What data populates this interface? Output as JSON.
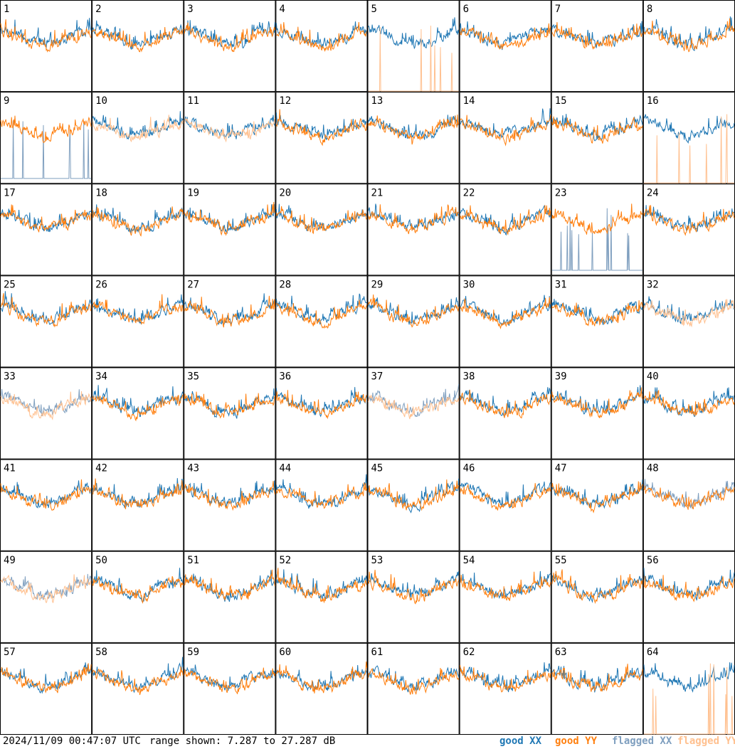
{
  "footer": {
    "timestamp": "2024/11/09 00:47:07 UTC",
    "range_text": "range shown: 7.287 to 27.287 dB"
  },
  "legend": {
    "good_xx": "good XX",
    "good_yy": "good YY",
    "flagged_xx": "flagged XX",
    "flagged_yy": "flagged YY"
  },
  "colors": {
    "good_xx": "#1f77b4",
    "good_yy": "#ff7f0e",
    "flagged_xx": "#7f9fbf",
    "flagged_yy": "#ffc08f"
  },
  "chart_data": {
    "type": "line",
    "grid_rows": 8,
    "grid_cols": 8,
    "ylim": [
      7.287,
      27.287
    ],
    "panels": [
      {
        "label": "1",
        "xx": "good",
        "yy": "good"
      },
      {
        "label": "2",
        "xx": "good",
        "yy": "good"
      },
      {
        "label": "3",
        "xx": "good",
        "yy": "good"
      },
      {
        "label": "4",
        "xx": "good",
        "yy": "good"
      },
      {
        "label": "5",
        "xx": "good",
        "yy": "flagged"
      },
      {
        "label": "6",
        "xx": "good",
        "yy": "good"
      },
      {
        "label": "7",
        "xx": "good",
        "yy": "good"
      },
      {
        "label": "8",
        "xx": "good",
        "yy": "good"
      },
      {
        "label": "9",
        "xx": "flagged",
        "yy": "good"
      },
      {
        "label": "10",
        "xx": "good",
        "yy": "flagged"
      },
      {
        "label": "11",
        "xx": "good",
        "yy": "flagged"
      },
      {
        "label": "12",
        "xx": "good",
        "yy": "good"
      },
      {
        "label": "13",
        "xx": "good",
        "yy": "good"
      },
      {
        "label": "14",
        "xx": "good",
        "yy": "good"
      },
      {
        "label": "15",
        "xx": "good",
        "yy": "good"
      },
      {
        "label": "16",
        "xx": "good",
        "yy": "flagged"
      },
      {
        "label": "17",
        "xx": "good",
        "yy": "good"
      },
      {
        "label": "18",
        "xx": "good",
        "yy": "good"
      },
      {
        "label": "19",
        "xx": "good",
        "yy": "good"
      },
      {
        "label": "20",
        "xx": "good",
        "yy": "good"
      },
      {
        "label": "21",
        "xx": "good",
        "yy": "good"
      },
      {
        "label": "22",
        "xx": "good",
        "yy": "good"
      },
      {
        "label": "23",
        "xx": "flagged",
        "yy": "good"
      },
      {
        "label": "24",
        "xx": "good",
        "yy": "good"
      },
      {
        "label": "25",
        "xx": "good",
        "yy": "good"
      },
      {
        "label": "26",
        "xx": "good",
        "yy": "good"
      },
      {
        "label": "27",
        "xx": "good",
        "yy": "good"
      },
      {
        "label": "28",
        "xx": "good",
        "yy": "good"
      },
      {
        "label": "29",
        "xx": "good",
        "yy": "good"
      },
      {
        "label": "30",
        "xx": "good",
        "yy": "good"
      },
      {
        "label": "31",
        "xx": "good",
        "yy": "good"
      },
      {
        "label": "32",
        "xx": "good",
        "yy": "flagged"
      },
      {
        "label": "33",
        "xx": "flagged",
        "yy": "flagged"
      },
      {
        "label": "34",
        "xx": "good",
        "yy": "good"
      },
      {
        "label": "35",
        "xx": "good",
        "yy": "good"
      },
      {
        "label": "36",
        "xx": "good",
        "yy": "good"
      },
      {
        "label": "37",
        "xx": "flagged",
        "yy": "flagged"
      },
      {
        "label": "38",
        "xx": "good",
        "yy": "good"
      },
      {
        "label": "39",
        "xx": "good",
        "yy": "good"
      },
      {
        "label": "40",
        "xx": "good",
        "yy": "good"
      },
      {
        "label": "41",
        "xx": "good",
        "yy": "good"
      },
      {
        "label": "42",
        "xx": "good",
        "yy": "good"
      },
      {
        "label": "43",
        "xx": "good",
        "yy": "good"
      },
      {
        "label": "44",
        "xx": "good",
        "yy": "good"
      },
      {
        "label": "45",
        "xx": "good",
        "yy": "good"
      },
      {
        "label": "46",
        "xx": "good",
        "yy": "good"
      },
      {
        "label": "47",
        "xx": "good",
        "yy": "good"
      },
      {
        "label": "48",
        "xx": "flagged",
        "yy": "good"
      },
      {
        "label": "49",
        "xx": "flagged",
        "yy": "flagged"
      },
      {
        "label": "50",
        "xx": "good",
        "yy": "good"
      },
      {
        "label": "51",
        "xx": "good",
        "yy": "good"
      },
      {
        "label": "52",
        "xx": "good",
        "yy": "good"
      },
      {
        "label": "53",
        "xx": "good",
        "yy": "good"
      },
      {
        "label": "54",
        "xx": "good",
        "yy": "good"
      },
      {
        "label": "55",
        "xx": "good",
        "yy": "good"
      },
      {
        "label": "56",
        "xx": "good",
        "yy": "good"
      },
      {
        "label": "57",
        "xx": "good",
        "yy": "good"
      },
      {
        "label": "58",
        "xx": "good",
        "yy": "good"
      },
      {
        "label": "59",
        "xx": "good",
        "yy": "good"
      },
      {
        "label": "60",
        "xx": "good",
        "yy": "good"
      },
      {
        "label": "61",
        "xx": "good",
        "yy": "good"
      },
      {
        "label": "62",
        "xx": "good",
        "yy": "good"
      },
      {
        "label": "63",
        "xx": "good",
        "yy": "good"
      },
      {
        "label": "64",
        "xx": "good",
        "yy": "flagged"
      }
    ]
  }
}
